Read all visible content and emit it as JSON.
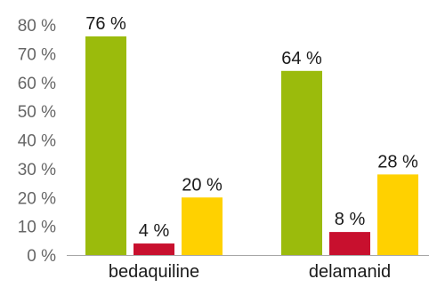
{
  "chart_data": {
    "type": "bar",
    "categories": [
      "bedaquiline",
      "delamanid"
    ],
    "series": [
      {
        "values": [
          76,
          64
        ],
        "color": "#9bbb0c"
      },
      {
        "values": [
          4,
          8
        ],
        "color": "#c8102e"
      },
      {
        "values": [
          20,
          28
        ],
        "color": "#ffd100"
      }
    ],
    "data_labels": [
      [
        "76 %",
        "64 %"
      ],
      [
        "4 %",
        "8 %"
      ],
      [
        "20 %",
        "28 %"
      ]
    ],
    "ylim": [
      0,
      80
    ],
    "yticks": [
      0,
      10,
      20,
      30,
      40,
      50,
      60,
      70,
      80
    ],
    "ytick_labels": [
      "0 %",
      "10 %",
      "20 %",
      "30 %",
      "40 %",
      "50 %",
      "60 %",
      "70 %",
      "80 %"
    ],
    "grid": false,
    "legend": false
  }
}
